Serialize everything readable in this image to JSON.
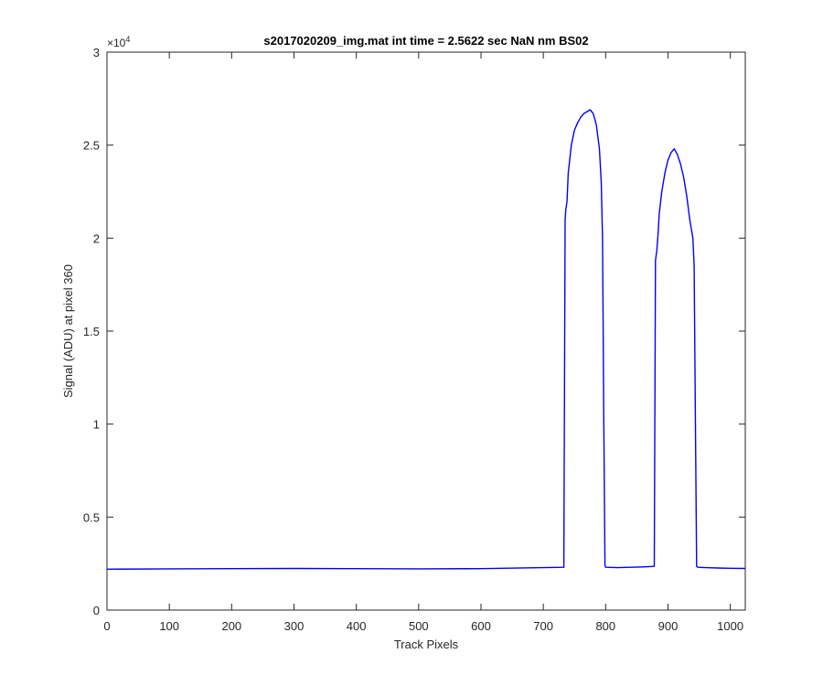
{
  "chart_data": {
    "type": "line",
    "title": "s2017020209_img.mat int time = 2.5622 sec  NaN nm BS02",
    "xlabel": "Track Pixels",
    "ylabel": "Signal (ADU) at pixel 360",
    "xlim": [
      0,
      1024
    ],
    "ylim": [
      0,
      30000
    ],
    "y_exponent_label": "×10",
    "y_exponent_power": "4",
    "x_ticks": [
      0,
      100,
      200,
      300,
      400,
      500,
      600,
      700,
      800,
      900,
      1000
    ],
    "x_tick_labels": [
      "0",
      "100",
      "200",
      "300",
      "400",
      "500",
      "600",
      "700",
      "800",
      "900",
      "1000"
    ],
    "y_ticks": [
      0,
      5000,
      10000,
      15000,
      20000,
      25000,
      30000
    ],
    "y_tick_labels": [
      "0",
      "0.5",
      "1",
      "1.5",
      "2",
      "2.5",
      "3"
    ],
    "grid": false,
    "line_color": "#0000ff",
    "series": [
      {
        "x": [
          0,
          100,
          200,
          300,
          400,
          500,
          600,
          700,
          733,
          735,
          736,
          738,
          740,
          745,
          750,
          755,
          760,
          765,
          770,
          775,
          780,
          785,
          790,
          793,
          795,
          797,
          799,
          800,
          820,
          840,
          860,
          878,
          880,
          882,
          884,
          886,
          890,
          895,
          900,
          905,
          910,
          915,
          920,
          925,
          930,
          935,
          940,
          942,
          944,
          946,
          948,
          960,
          980,
          1000,
          1024
        ],
        "y": [
          2200,
          2220,
          2230,
          2240,
          2230,
          2220,
          2230,
          2280,
          2300,
          21000,
          21500,
          22000,
          23500,
          25000,
          25800,
          26200,
          26500,
          26700,
          26800,
          26900,
          26700,
          26100,
          24800,
          23000,
          20000,
          10000,
          2400,
          2300,
          2280,
          2300,
          2320,
          2350,
          18800,
          19300,
          20200,
          21300,
          22500,
          23500,
          24200,
          24600,
          24800,
          24500,
          24000,
          23300,
          22300,
          21000,
          20000,
          18500,
          10000,
          2350,
          2300,
          2280,
          2260,
          2250,
          2240
        ]
      }
    ]
  }
}
